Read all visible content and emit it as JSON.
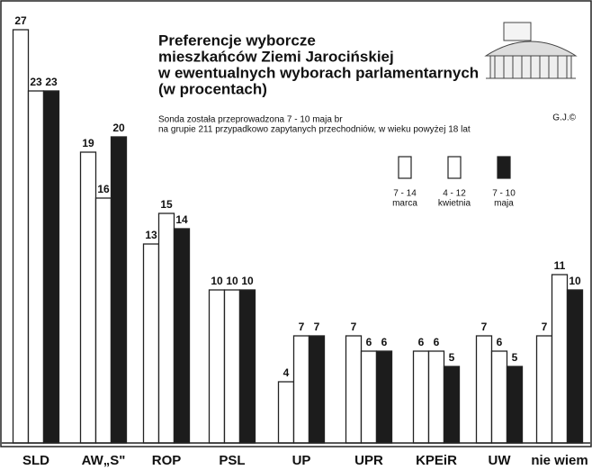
{
  "chart_data": {
    "type": "bar",
    "title": [
      "Preferencje wyborcze",
      "mieszkańców Ziemi Jarocińskiej",
      "w ewentualnych wyborach parlamentarnych",
      "(w procentach)"
    ],
    "subtitle": [
      "Sonda została przeprowadzona 7 - 10 maja br",
      "na grupie 211 przypadkowo zapytanych przechodniów, w wieku powyżej 18 lat"
    ],
    "credit": "G.J.©",
    "categories": [
      "SLD",
      "AW„S\"",
      "ROP",
      "PSL",
      "UP",
      "UPR",
      "KPEiR",
      "UW",
      "nie wiem"
    ],
    "series": [
      {
        "name": [
          "7 - 14",
          "marca"
        ],
        "color": "#ffffff",
        "values": [
          27,
          19,
          13,
          10,
          4,
          7,
          6,
          7,
          7
        ]
      },
      {
        "name": [
          "4 - 12",
          "kwietnia"
        ],
        "color": "#ffffff",
        "values": [
          23,
          16,
          15,
          10,
          7,
          6,
          6,
          6,
          11
        ]
      },
      {
        "name": [
          "7 - 10",
          "maja"
        ],
        "color": "#1c1c1c",
        "values": [
          23,
          20,
          14,
          10,
          7,
          6,
          5,
          5,
          10
        ]
      }
    ],
    "legend": "top-right"
  }
}
